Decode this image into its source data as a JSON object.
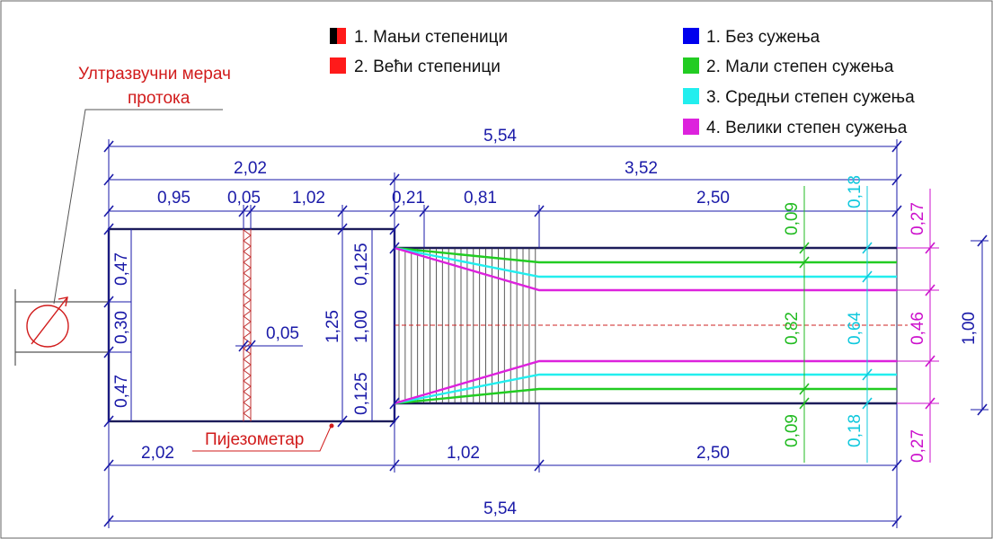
{
  "colors": {
    "dimension": "#1a1aa8",
    "outline": "#1c1c5a",
    "label_red": "#d11b1b",
    "no_constriction": "#0000ee",
    "small_constriction": "#22cc22",
    "medium_constriction": "#22eeee",
    "large_constriction": "#dd22dd"
  },
  "labels": {
    "flowmeter": [
      "Ултразвучни мерач",
      "протока"
    ],
    "piezometer": "Пијезометар"
  },
  "legend_steps": [
    {
      "icon": "black-red-swatch-icon",
      "text": "1. Мањи степеници"
    },
    {
      "icon": "red-swatch-icon",
      "text": "2. Већи степеници"
    }
  ],
  "legend_constriction": [
    {
      "icon": "blue-swatch-icon",
      "text": "1. Без сужења"
    },
    {
      "icon": "green-swatch-icon",
      "text": "2. Мали степен сужења"
    },
    {
      "icon": "cyan-swatch-icon",
      "text": "3. Средњи степен сужења"
    },
    {
      "icon": "magenta-swatch-icon",
      "text": "4. Велики степен сужења"
    }
  ],
  "dims_top": {
    "total": "5,54",
    "left_total": "2,02",
    "right_total": "3,52",
    "seg_a": "0,95",
    "seg_b": "0,05",
    "seg_c": "1,02",
    "seg_d": "0,21",
    "seg_e": "0,81",
    "seg_f": "2,50"
  },
  "dims_bottom": {
    "seg_a": "2,02",
    "seg_b": "1,02",
    "seg_c": "2,50",
    "total": "5,54"
  },
  "dims_tank": {
    "top": "0,47",
    "mid": "0,30",
    "bottom": "0,47",
    "screen": "0,05",
    "height": "1,25",
    "inner_width": "1,00",
    "edge_top": "0,125",
    "edge_bottom": "0,125"
  },
  "dims_channel": {
    "green_side_top": "0,09",
    "green_center": "0,82",
    "green_side_bottom": "0,09",
    "cyan_side_top": "0,18",
    "cyan_center": "0,64",
    "cyan_side_bottom": "0,18",
    "magenta_side_top": "0,27",
    "magenta_center": "0,46",
    "magenta_side_bottom": "0,27",
    "width": "1,00"
  }
}
